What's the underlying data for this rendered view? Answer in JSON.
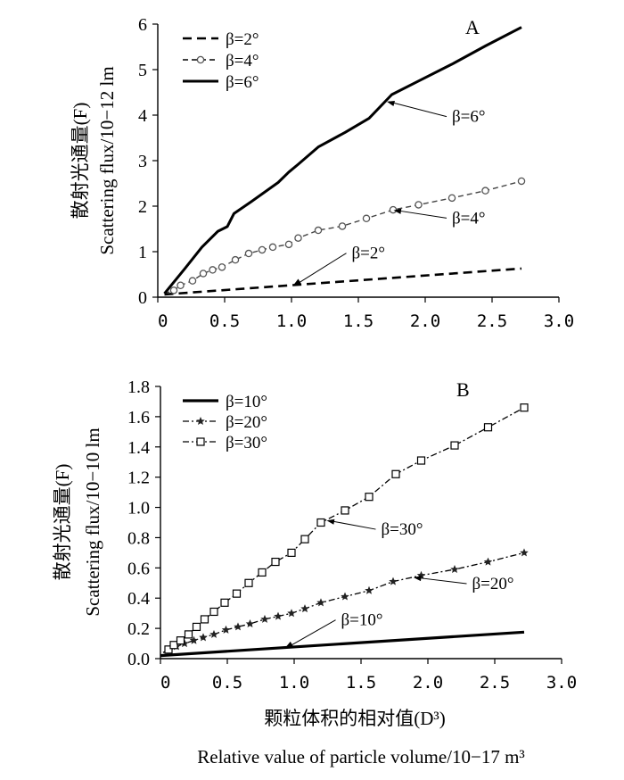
{
  "chart_data": [
    {
      "type": "line",
      "panel_label": "A",
      "ylabel_cn": "散射光通量(F)",
      "ylabel_en": "Scattering flux/10−12 lm",
      "xlim": [
        0,
        3.0
      ],
      "ylim": [
        0,
        6
      ],
      "x_ticks": [
        "0",
        "0.5",
        "1.0",
        "1.5",
        "2.0",
        "2.5",
        "3.0"
      ],
      "y_ticks": [
        "0",
        "1",
        "2",
        "3",
        "4",
        "5",
        "6"
      ],
      "series": [
        {
          "name": "β=2°",
          "style": "dashed",
          "annotation": "β=2°",
          "x": [
            0.05,
            2.72
          ],
          "y": [
            0.06,
            0.63
          ]
        },
        {
          "name": "β=4°",
          "style": "dashed-circle",
          "annotation": "β=4°",
          "x": [
            0.05,
            0.12,
            0.17,
            0.26,
            0.34,
            0.41,
            0.48,
            0.58,
            0.68,
            0.78,
            0.86,
            0.98,
            1.05,
            1.2,
            1.38,
            1.56,
            1.76,
            1.95,
            2.2,
            2.45,
            2.72
          ],
          "y": [
            0.08,
            0.15,
            0.26,
            0.36,
            0.52,
            0.6,
            0.66,
            0.82,
            0.96,
            1.04,
            1.1,
            1.16,
            1.3,
            1.47,
            1.56,
            1.73,
            1.92,
            2.03,
            2.18,
            2.34,
            2.55
          ]
        },
        {
          "name": "β=6°",
          "style": "solid",
          "annotation": "β=6°",
          "x": [
            0.05,
            0.2,
            0.33,
            0.45,
            0.52,
            0.57,
            0.7,
            0.9,
            0.98,
            1.05,
            1.2,
            1.4,
            1.58,
            1.75,
            1.95,
            2.2,
            2.45,
            2.72
          ],
          "y": [
            0.08,
            0.62,
            1.1,
            1.45,
            1.55,
            1.84,
            2.1,
            2.52,
            2.75,
            2.92,
            3.3,
            3.62,
            3.93,
            4.45,
            4.75,
            5.12,
            5.52,
            5.93
          ]
        }
      ],
      "annotations": [
        {
          "text": "β=6°",
          "x": 2.2,
          "y": 3.85
        },
        {
          "text": "β=4°",
          "x": 2.2,
          "y": 1.62
        },
        {
          "text": "β=2°",
          "x": 1.45,
          "y": 0.85
        }
      ]
    },
    {
      "type": "line",
      "panel_label": "B",
      "ylabel_cn": "散射光通量(F)",
      "ylabel_en": "Scattering flux/10−10 lm",
      "xlim": [
        0,
        3.0
      ],
      "ylim": [
        0,
        1.8
      ],
      "x_ticks": [
        "0",
        "0.5",
        "1.0",
        "1.5",
        "2.0",
        "2.5",
        "3.0"
      ],
      "y_ticks": [
        "0.0",
        "0.2",
        "0.4",
        "0.6",
        "0.8",
        "1.0",
        "1.2",
        "1.4",
        "1.6",
        "1.8"
      ],
      "series": [
        {
          "name": "β=10°",
          "style": "solid-thick",
          "annotation": "β=10°",
          "x": [
            0.0,
            2.72
          ],
          "y": [
            0.02,
            0.175
          ]
        },
        {
          "name": "β=20°",
          "style": "dashdot-star",
          "annotation": "β=20°",
          "x": [
            0.02,
            0.07,
            0.12,
            0.18,
            0.25,
            0.32,
            0.4,
            0.49,
            0.58,
            0.67,
            0.78,
            0.88,
            0.98,
            1.08,
            1.2,
            1.38,
            1.56,
            1.74,
            1.95,
            2.2,
            2.45,
            2.72
          ],
          "y": [
            0.04,
            0.06,
            0.08,
            0.1,
            0.12,
            0.14,
            0.16,
            0.19,
            0.21,
            0.23,
            0.26,
            0.28,
            0.3,
            0.33,
            0.37,
            0.41,
            0.45,
            0.51,
            0.55,
            0.59,
            0.64,
            0.7
          ]
        },
        {
          "name": "β=30°",
          "style": "dashdot-square",
          "annotation": "β=30°",
          "x": [
            0.02,
            0.06,
            0.1,
            0.15,
            0.21,
            0.27,
            0.33,
            0.4,
            0.48,
            0.57,
            0.66,
            0.76,
            0.86,
            0.98,
            1.08,
            1.2,
            1.38,
            1.56,
            1.76,
            1.95,
            2.2,
            2.45,
            2.72
          ],
          "y": [
            0.04,
            0.06,
            0.09,
            0.12,
            0.16,
            0.21,
            0.26,
            0.31,
            0.37,
            0.43,
            0.5,
            0.57,
            0.64,
            0.7,
            0.79,
            0.9,
            0.98,
            1.07,
            1.22,
            1.31,
            1.41,
            1.53,
            1.66
          ]
        }
      ],
      "annotations": [
        {
          "text": "β=30°",
          "x": 1.65,
          "y": 0.82
        },
        {
          "text": "β=20°",
          "x": 2.33,
          "y": 0.46
        },
        {
          "text": "β=10°",
          "x": 1.35,
          "y": 0.22
        }
      ]
    }
  ],
  "shared_xlabel_cn": "颗粒体积的相对值(D³)",
  "shared_xlabel_en": "Relative value of particle volume/10−17 m³"
}
